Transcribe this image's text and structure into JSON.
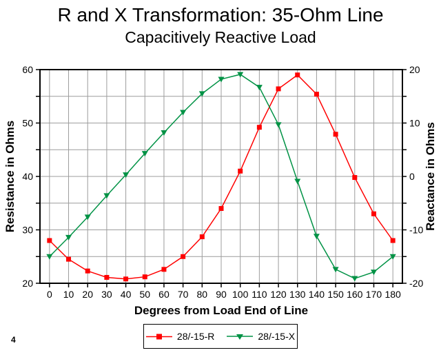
{
  "page": {
    "footnote": "4"
  },
  "chart_data": {
    "type": "line",
    "title": "R and X Transformation: 35-Ohm Line",
    "subtitle": "Capacitively Reactive Load",
    "xlabel": "Degrees from Load End of Line",
    "ylabel_left": "Resistance in Ohms",
    "ylabel_right": "Reactance in Ohms",
    "x": [
      0,
      10,
      20,
      30,
      40,
      50,
      60,
      70,
      80,
      90,
      100,
      110,
      120,
      130,
      140,
      150,
      160,
      170,
      180
    ],
    "series": [
      {
        "name": "28/-15-R",
        "axis": "left",
        "color": "#FF0000",
        "marker": "square",
        "values": [
          28.0,
          24.5,
          22.3,
          21.1,
          20.8,
          21.2,
          22.6,
          25.0,
          28.7,
          34.0,
          41.0,
          49.2,
          56.4,
          59.0,
          55.4,
          47.9,
          39.8,
          33.0,
          28.0
        ]
      },
      {
        "name": "28/-15-X",
        "axis": "right",
        "color": "#009245",
        "marker": "triangle-down",
        "values": [
          -15.0,
          -11.4,
          -7.6,
          -3.6,
          0.3,
          4.3,
          8.2,
          12.0,
          15.5,
          18.2,
          19.1,
          16.7,
          9.7,
          -0.9,
          -11.2,
          -17.4,
          -19.1,
          -17.9,
          -15.0
        ]
      }
    ],
    "axes": {
      "x": {
        "min": -5,
        "max": 185,
        "tick_start": 0,
        "tick_end": 180,
        "tick_step": 10
      },
      "left": {
        "min": 20,
        "max": 60,
        "tick_step": 5,
        "label_step": 10
      },
      "right": {
        "min": -20,
        "max": 20,
        "tick_step": 5,
        "label_step": 10
      }
    },
    "grid": {
      "x_step": 10,
      "y_step": 5,
      "color": "#9C9C9C"
    },
    "legend_position": "bottom"
  }
}
